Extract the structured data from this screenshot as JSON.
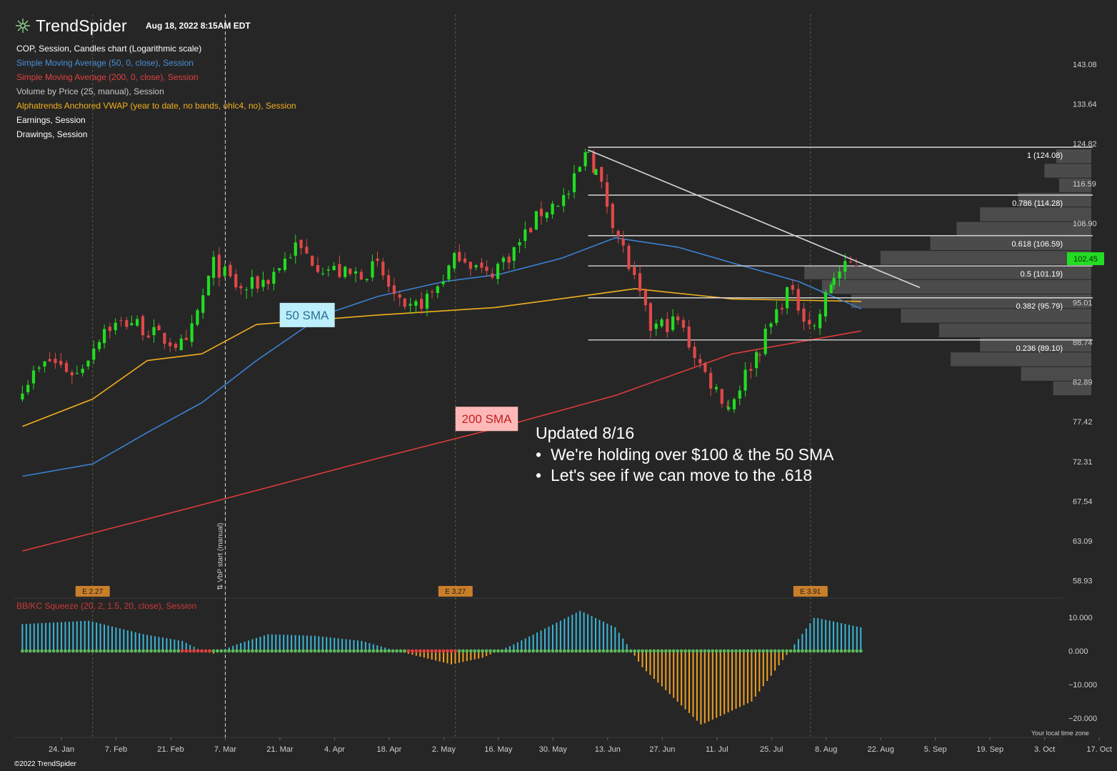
{
  "header": {
    "brand": "TrendSpider",
    "date": "Aug 18, 2022 8:15AM EDT",
    "lines": [
      {
        "text": "COP, Session, Candles chart (Logarithmic scale)",
        "color": "#ffffff"
      },
      {
        "text": "Simple Moving Average (50, 0, close), Session",
        "color": "#4a90d9"
      },
      {
        "text": "Simple Moving Average (200, 0, close), Session",
        "color": "#e04040"
      },
      {
        "text": "Volume by Price (25, manual), Session",
        "color": "#c8c8c8"
      },
      {
        "text": "Alphatrends Anchored VWAP (year to date, no bands, ohlc4, no), Session",
        "color": "#f2b01e"
      },
      {
        "text": "Earnings, Session",
        "color": "#ffffff"
      },
      {
        "text": "Drawings, Session",
        "color": "#ffffff"
      }
    ]
  },
  "footer": {
    "copyright": "©2022 TrendSpider",
    "timezone": "Your local time zone"
  },
  "chart_data": [
    {
      "type": "candlestick",
      "symbol": "COP",
      "scale": "log",
      "ylim": [
        56.5,
        148
      ],
      "price_ticks": [
        143.08,
        133.64,
        124.82,
        116.59,
        108.9,
        101.72,
        95.01,
        88.74,
        82.89,
        77.42,
        72.31,
        67.54,
        63.09,
        58.93
      ],
      "price_tick_labels": [
        "143.08",
        "133.64",
        "124.82",
        "116.59",
        "108.90",
        "",
        "95.01",
        "88.74",
        "82.89",
        "77.42",
        "72.31",
        "67.54",
        "63.09",
        "58.93"
      ],
      "x_tick_labels": [
        "24. Jan",
        "7. Feb",
        "21. Feb",
        "7. Mar",
        "21. Mar",
        "4. Apr",
        "18. Apr",
        "2. May",
        "16. May",
        "30. May",
        "13. Jun",
        "27. Jun",
        "11. Jul",
        "25. Jul",
        "8. Aug",
        "22. Aug",
        "5. Sep",
        "19. Sep",
        "3. Oct",
        "17. Oct"
      ],
      "x_ticks": [
        "2022-01-24",
        "2022-02-07",
        "2022-02-21",
        "2022-03-07",
        "2022-03-21",
        "2022-04-04",
        "2022-04-18",
        "2022-05-02",
        "2022-05-16",
        "2022-05-30",
        "2022-06-13",
        "2022-06-27",
        "2022-07-11",
        "2022-07-25",
        "2022-08-08",
        "2022-08-22",
        "2022-09-05",
        "2022-09-19",
        "2022-10-03",
        "2022-10-17"
      ],
      "current_price": {
        "value": 102.45,
        "label": "102.45"
      },
      "close_path": [
        {
          "date": "2022-01-14",
          "close": 82.5
        },
        {
          "date": "2022-01-21",
          "close": 86.0
        },
        {
          "date": "2022-01-28",
          "close": 84.0
        },
        {
          "date": "2022-02-04",
          "close": 91.0
        },
        {
          "date": "2022-02-11",
          "close": 92.0
        },
        {
          "date": "2022-02-18",
          "close": 89.5
        },
        {
          "date": "2022-02-25",
          "close": 88.0
        },
        {
          "date": "2022-03-04",
          "close": 101.5
        },
        {
          "date": "2022-03-11",
          "close": 97.0
        },
        {
          "date": "2022-03-18",
          "close": 99.0
        },
        {
          "date": "2022-03-25",
          "close": 104.5
        },
        {
          "date": "2022-04-01",
          "close": 101.0
        },
        {
          "date": "2022-04-08",
          "close": 99.5
        },
        {
          "date": "2022-04-15",
          "close": 101.0
        },
        {
          "date": "2022-04-22",
          "close": 93.0
        },
        {
          "date": "2022-04-29",
          "close": 96.5
        },
        {
          "date": "2022-05-06",
          "close": 103.5
        },
        {
          "date": "2022-05-13",
          "close": 99.5
        },
        {
          "date": "2022-05-20",
          "close": 104.0
        },
        {
          "date": "2022-05-27",
          "close": 111.0
        },
        {
          "date": "2022-06-03",
          "close": 114.5
        },
        {
          "date": "2022-06-08",
          "close": 123.5
        },
        {
          "date": "2022-06-10",
          "close": 119.0
        },
        {
          "date": "2022-06-17",
          "close": 104.0
        },
        {
          "date": "2022-06-24",
          "close": 91.0
        },
        {
          "date": "2022-07-01",
          "close": 92.0
        },
        {
          "date": "2022-07-08",
          "close": 84.0
        },
        {
          "date": "2022-07-14",
          "close": 79.5
        },
        {
          "date": "2022-07-22",
          "close": 88.0
        },
        {
          "date": "2022-07-29",
          "close": 97.0
        },
        {
          "date": "2022-08-05",
          "close": 91.0
        },
        {
          "date": "2022-08-10",
          "close": 99.5
        },
        {
          "date": "2022-08-17",
          "close": 102.45
        }
      ],
      "sma50": [
        {
          "date": "2022-01-14",
          "value": 70.5
        },
        {
          "date": "2022-02-01",
          "value": 72.0
        },
        {
          "date": "2022-02-15",
          "value": 76.0
        },
        {
          "date": "2022-03-01",
          "value": 80.0
        },
        {
          "date": "2022-03-15",
          "value": 86.0
        },
        {
          "date": "2022-04-01",
          "value": 93.0
        },
        {
          "date": "2022-04-15",
          "value": 96.0
        },
        {
          "date": "2022-05-02",
          "value": 98.5
        },
        {
          "date": "2022-05-16",
          "value": 99.7
        },
        {
          "date": "2022-06-01",
          "value": 102.5
        },
        {
          "date": "2022-06-15",
          "value": 106.2
        },
        {
          "date": "2022-07-01",
          "value": 104.5
        },
        {
          "date": "2022-07-15",
          "value": 101.7
        },
        {
          "date": "2022-08-01",
          "value": 98.5
        },
        {
          "date": "2022-08-17",
          "value": 94.0
        }
      ],
      "sma200": [
        {
          "date": "2022-01-14",
          "value": 62.0
        },
        {
          "date": "2022-02-15",
          "value": 65.5
        },
        {
          "date": "2022-03-15",
          "value": 68.8
        },
        {
          "date": "2022-04-15",
          "value": 72.7
        },
        {
          "date": "2022-05-15",
          "value": 76.5
        },
        {
          "date": "2022-06-15",
          "value": 81.0
        },
        {
          "date": "2022-07-15",
          "value": 87.0
        },
        {
          "date": "2022-08-17",
          "value": 90.5
        }
      ],
      "anchored_vwap": [
        {
          "date": "2022-01-14",
          "value": 76.8
        },
        {
          "date": "2022-02-01",
          "value": 80.5
        },
        {
          "date": "2022-02-15",
          "value": 86.0
        },
        {
          "date": "2022-03-01",
          "value": 87.0
        },
        {
          "date": "2022-03-15",
          "value": 91.5
        },
        {
          "date": "2022-04-15",
          "value": 93.0
        },
        {
          "date": "2022-05-15",
          "value": 94.2
        },
        {
          "date": "2022-06-10",
          "value": 96.4
        },
        {
          "date": "2022-06-20",
          "value": 97.3
        },
        {
          "date": "2022-07-15",
          "value": 95.6
        },
        {
          "date": "2022-08-17",
          "value": 95.2
        }
      ],
      "fib_levels": [
        {
          "ratio": 1,
          "price": 124.08,
          "label": "1 (124.08)"
        },
        {
          "ratio": 0.786,
          "price": 114.28,
          "label": "0.786 (114.28)"
        },
        {
          "ratio": 0.618,
          "price": 106.59,
          "label": "0.618 (106.59)"
        },
        {
          "ratio": 0.5,
          "price": 101.19,
          "label": "0.5 (101.19)"
        },
        {
          "ratio": 0.382,
          "price": 95.79,
          "label": "0.382 (95.79)"
        },
        {
          "ratio": 0.236,
          "price": 89.1,
          "label": "0.236 (89.10)"
        }
      ],
      "fib_start_date": "2022-06-08",
      "trendline": [
        {
          "date": "2022-06-08",
          "price": 123.5
        },
        {
          "date": "2022-09-01",
          "price": 97.5
        }
      ],
      "volume_by_price_rows": [
        0.12,
        0.16,
        0.11,
        0.25,
        0.38,
        0.46,
        0.55,
        0.72,
        0.98,
        0.92,
        0.82,
        0.65,
        0.52,
        0.38,
        0.48,
        0.24,
        0.13
      ],
      "earnings": [
        {
          "date": "2022-02-01",
          "label": "E 2.27"
        },
        {
          "date": "2022-05-05",
          "label": "E 3.27"
        },
        {
          "date": "2022-08-04",
          "label": "E 3.91"
        }
      ],
      "vbp_start": {
        "date": "2022-03-07",
        "label": "⇅ VbP start (manual)"
      },
      "annotations": [
        {
          "text": "50 SMA",
          "date": "2022-03-28",
          "price": 93.0
        },
        {
          "text": "200 SMA",
          "date": "2022-05-13",
          "price": 77.8
        }
      ],
      "note": {
        "title": "Updated 8/16",
        "bullets": [
          "We're holding over $100 & the 50 SMA",
          "Let's see if we can move to the .618"
        ]
      }
    },
    {
      "type": "bar",
      "title": "BB/KC Squeeze (20, 2, 1.5, 20, close), Session",
      "ylim": [
        -24,
        13
      ],
      "y_ticks": [
        10,
        0,
        -10,
        -20
      ],
      "y_tick_labels": [
        "10.000",
        "0.000",
        "−10.000",
        "−20.000"
      ],
      "momentum_path": [
        {
          "date": "2022-01-14",
          "value": 8
        },
        {
          "date": "2022-01-31",
          "value": 9
        },
        {
          "date": "2022-02-14",
          "value": 5
        },
        {
          "date": "2022-02-24",
          "value": 3
        },
        {
          "date": "2022-03-01",
          "value": 0
        },
        {
          "date": "2022-03-04",
          "value": -0.8
        },
        {
          "date": "2022-03-10",
          "value": 2
        },
        {
          "date": "2022-03-18",
          "value": 5
        },
        {
          "date": "2022-03-30",
          "value": 4.5
        },
        {
          "date": "2022-04-11",
          "value": 3
        },
        {
          "date": "2022-04-20",
          "value": 0
        },
        {
          "date": "2022-05-04",
          "value": -4
        },
        {
          "date": "2022-05-12",
          "value": -2
        },
        {
          "date": "2022-05-20",
          "value": 2
        },
        {
          "date": "2022-06-06",
          "value": 12
        },
        {
          "date": "2022-06-15",
          "value": 7
        },
        {
          "date": "2022-06-22",
          "value": -5
        },
        {
          "date": "2022-07-07",
          "value": -22
        },
        {
          "date": "2022-07-20",
          "value": -15
        },
        {
          "date": "2022-07-29",
          "value": -1
        },
        {
          "date": "2022-08-05",
          "value": 10
        },
        {
          "date": "2022-08-17",
          "value": 7
        }
      ],
      "squeeze_on": [
        [
          "2022-02-23",
          "2022-03-03"
        ],
        [
          "2022-04-22",
          "2022-05-05"
        ]
      ],
      "colors": {
        "up": "#39b6d8",
        "down": "#f0a020",
        "squeeze_on": "#e04040",
        "squeeze_off": "#5cb85c"
      }
    }
  ],
  "colors": {
    "background": "#262626",
    "up_candle": "#22dd22",
    "down_candle": "#e04848",
    "sma50": "#3b82d4",
    "sma200": "#dd3b3b",
    "vwap": "#f2b01e",
    "fib": "#e6e6e6",
    "trendline": "#d8d8d8",
    "vbp": "#4d4d4d",
    "earnings": "#c97e2a",
    "label_50": "#bdeffa",
    "label_200": "#ffb8b8",
    "price_badge": "#22dd22"
  }
}
